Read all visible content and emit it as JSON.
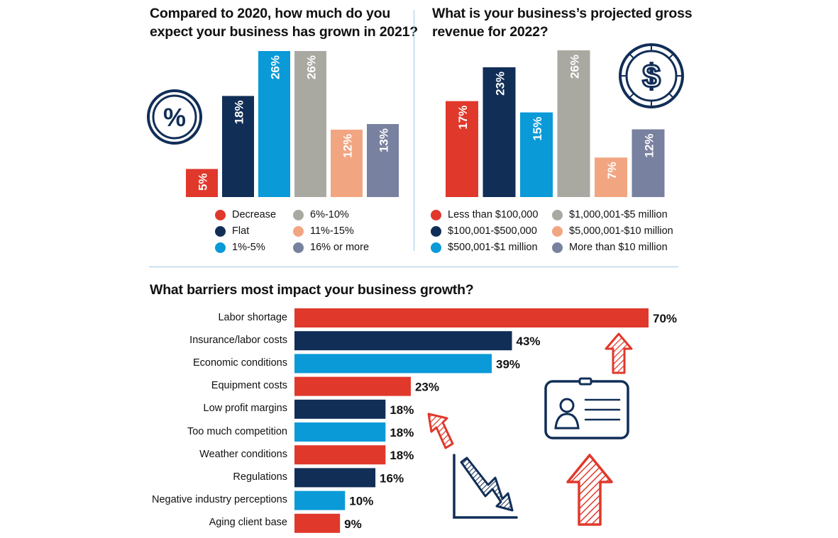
{
  "colors": {
    "red": "#e0382b",
    "navy": "#112e57",
    "blue": "#0a9ad8",
    "gray": "#a9a9a1",
    "peach": "#f2a581",
    "slate": "#78819f",
    "text": "#111111"
  },
  "icons": [
    "percent-coin-icon",
    "dollar-coin-icon",
    "id-card-icon",
    "arrow-up-striped-icon",
    "arrow-down-chart-icon"
  ],
  "chart_data": [
    {
      "type": "bar",
      "title": "Compared to 2020, how much do you expect your business has grown in 2021?",
      "title_lines": [
        "Compared to 2020, how much do you",
        "expect your business has grown in 2021?"
      ],
      "categories": [
        "Decrease",
        "Flat",
        "1%-5%",
        "6%-10%",
        "11%-15%",
        "16% or more"
      ],
      "values": [
        5,
        18,
        26,
        26,
        12,
        13
      ],
      "labels": [
        "5%",
        "18%",
        "26%",
        "26%",
        "12%",
        "13%"
      ],
      "colors": [
        "#e0382b",
        "#112e57",
        "#0a9ad8",
        "#a9a9a1",
        "#f2a581",
        "#78819f"
      ],
      "legend_order": [
        "Decrease",
        "Flat",
        "1%-5%",
        "6%-10%",
        "11%-15%",
        "16% or more"
      ],
      "ylim": [
        0,
        26
      ]
    },
    {
      "type": "bar",
      "title": "What is your business's projected gross revenue for 2022?",
      "title_lines": [
        "What is your business’s projected gross",
        "revenue for 2022?"
      ],
      "categories": [
        "Less than $100,000",
        "$100,001-$500,000",
        "$500,001-$1 million",
        "$1,000,001-$5 million",
        "$5,000,001-$10 million",
        "More than $10 million"
      ],
      "values": [
        17,
        23,
        15,
        26,
        7,
        12
      ],
      "labels": [
        "17%",
        "23%",
        "15%",
        "26%",
        "7%",
        "12%"
      ],
      "colors": [
        "#e0382b",
        "#112e57",
        "#0a9ad8",
        "#a9a9a1",
        "#f2a581",
        "#78819f"
      ],
      "ylim": [
        0,
        26
      ]
    },
    {
      "type": "bar",
      "orientation": "horizontal",
      "title": "What barriers most impact your business growth?",
      "categories": [
        "Labor shortage",
        "Insurance/labor costs",
        "Economic conditions",
        "Equipment costs",
        "Low profit margins",
        "Too much competition",
        "Weather conditions",
        "Regulations",
        "Negative industry perceptions",
        "Aging client base"
      ],
      "values": [
        70,
        43,
        39,
        23,
        18,
        18,
        18,
        16,
        10,
        9
      ],
      "labels": [
        "70%",
        "43%",
        "39%",
        "23%",
        "18%",
        "18%",
        "18%",
        "16%",
        "10%",
        "9%"
      ],
      "colors": [
        "#e0382b",
        "#112e57",
        "#0a9ad8",
        "#e0382b",
        "#112e57",
        "#0a9ad8",
        "#e0382b",
        "#112e57",
        "#0a9ad8",
        "#e0382b"
      ],
      "xlim": [
        0,
        70
      ]
    }
  ]
}
